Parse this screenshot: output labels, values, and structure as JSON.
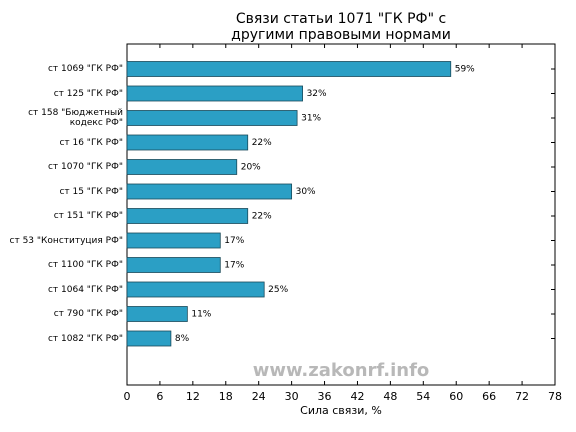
{
  "chart_data": {
    "type": "bar",
    "orientation": "horizontal",
    "title": [
      "Связи статьи 1071 \"ГК РФ\" с",
      "другими правовыми нормами"
    ],
    "categories": [
      "ст 1069 \"ГК РФ\"",
      "ст 125 \"ГК РФ\"",
      "ст 158 \"Бюджетный кодекс РФ\"",
      "ст 16 \"ГК РФ\"",
      "ст 1070 \"ГК РФ\"",
      "ст 15 \"ГК РФ\"",
      "ст 151 \"ГК РФ\"",
      "ст 53 \"Конституция РФ\"",
      "ст 1100 \"ГК РФ\"",
      "ст 1064 \"ГК РФ\"",
      "ст 790 \"ГК РФ\"",
      "ст 1082 \"ГК РФ\""
    ],
    "values": [
      59,
      32,
      31,
      22,
      20,
      30,
      22,
      17,
      17,
      25,
      11,
      8
    ],
    "value_labels": [
      "59%",
      "32%",
      "31%",
      "22%",
      "20%",
      "30%",
      "22%",
      "17%",
      "17%",
      "25%",
      "11%",
      "8%"
    ],
    "color": "#2b9fc5",
    "xlim": [
      0,
      78
    ],
    "xticks": [
      0,
      6,
      12,
      18,
      24,
      30,
      36,
      42,
      48,
      54,
      60,
      66,
      72,
      78
    ],
    "xlabel": "Сила связи, %",
    "watermark": "www.zakonrf.info"
  }
}
